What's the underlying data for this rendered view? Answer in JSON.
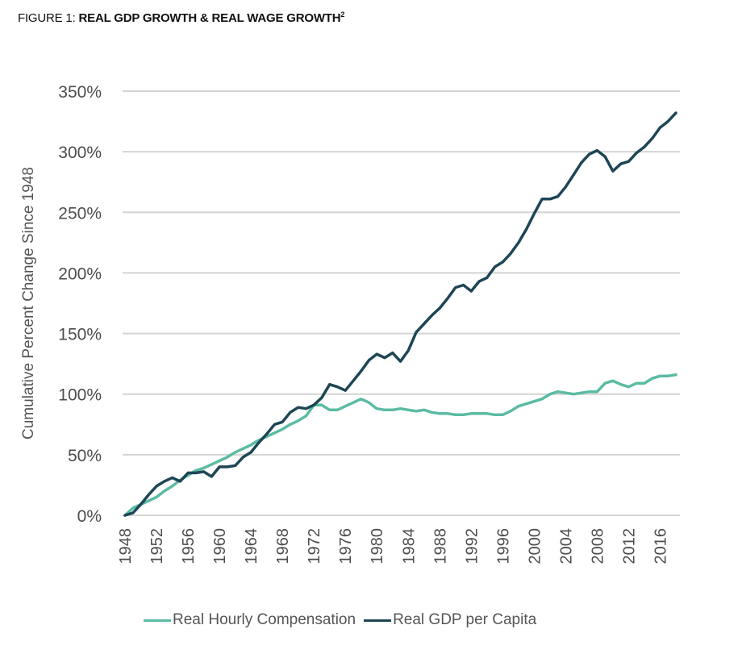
{
  "figure": {
    "prefix": "FIGURE 1: ",
    "title_bold": "REAL GDP GROWTH & REAL WAGE GROWTH",
    "superscript": "2"
  },
  "colors": {
    "compensation": "#5BBBA3",
    "gdp": "#1E4655",
    "grid": "#d4d4d4"
  },
  "chart_data": {
    "type": "line",
    "title": "REAL GDP GROWTH & REAL WAGE GROWTH",
    "xlabel": "",
    "ylabel": "Cumulative Percent Change Since 1948",
    "ylim": [
      0,
      350
    ],
    "xlim": [
      1948,
      2018
    ],
    "grid": true,
    "legend_position": "bottom",
    "y_ticks": [
      0,
      50,
      100,
      150,
      200,
      250,
      300,
      350
    ],
    "y_tick_labels": [
      "0%",
      "50%",
      "100%",
      "150%",
      "200%",
      "250%",
      "300%",
      "350%"
    ],
    "x_ticks": [
      1948,
      1952,
      1956,
      1960,
      1964,
      1968,
      1972,
      1976,
      1980,
      1984,
      1988,
      1992,
      1996,
      2000,
      2004,
      2008,
      2012,
      2016
    ],
    "x_tick_labels": [
      "1948",
      "1952",
      "1956",
      "1960",
      "1964",
      "1968",
      "1972",
      "1976",
      "1980",
      "1984",
      "1988",
      "1992",
      "1996",
      "2000",
      "2004",
      "2008",
      "2012",
      "2016"
    ],
    "x": [
      1948,
      1949,
      1950,
      1951,
      1952,
      1953,
      1954,
      1955,
      1956,
      1957,
      1958,
      1959,
      1960,
      1961,
      1962,
      1963,
      1964,
      1965,
      1966,
      1967,
      1968,
      1969,
      1970,
      1971,
      1972,
      1973,
      1974,
      1975,
      1976,
      1977,
      1978,
      1979,
      1980,
      1981,
      1982,
      1983,
      1984,
      1985,
      1986,
      1987,
      1988,
      1989,
      1990,
      1991,
      1992,
      1993,
      1994,
      1995,
      1996,
      1997,
      1998,
      1999,
      2000,
      2001,
      2002,
      2003,
      2004,
      2005,
      2006,
      2007,
      2008,
      2009,
      2010,
      2011,
      2012,
      2013,
      2014,
      2015,
      2016,
      2017,
      2018
    ],
    "series": [
      {
        "name": "Real Hourly Compensation",
        "key": "compensation",
        "values": [
          0,
          6,
          9,
          12,
          15,
          20,
          24,
          29,
          33,
          37,
          39,
          42,
          45,
          48,
          52,
          55,
          58,
          62,
          65,
          68,
          71,
          75,
          78,
          82,
          91,
          91,
          87,
          87,
          90,
          93,
          96,
          93,
          88,
          87,
          87,
          88,
          87,
          86,
          87,
          85,
          84,
          84,
          83,
          83,
          84,
          84,
          84,
          83,
          83,
          86,
          90,
          92,
          94,
          96,
          100,
          102,
          101,
          100,
          101,
          102,
          102,
          109,
          111,
          108,
          106,
          109,
          109,
          113,
          115,
          115,
          116
        ]
      },
      {
        "name": "Real GDP per Capita",
        "key": "gdp",
        "values": [
          0,
          2,
          9,
          17,
          24,
          28,
          31,
          28,
          35,
          35,
          36,
          32,
          40,
          40,
          41,
          48,
          52,
          60,
          67,
          75,
          77,
          85,
          89,
          88,
          91,
          97,
          108,
          106,
          103,
          111,
          119,
          128,
          133,
          130,
          134,
          127,
          136,
          151,
          158,
          165,
          171,
          179,
          188,
          190,
          185,
          193,
          196,
          205,
          209,
          216,
          225,
          236,
          249,
          261,
          261,
          263,
          271,
          281,
          291,
          298,
          301,
          296,
          284,
          290,
          292,
          299,
          304,
          311,
          320,
          325,
          332
        ]
      }
    ]
  }
}
